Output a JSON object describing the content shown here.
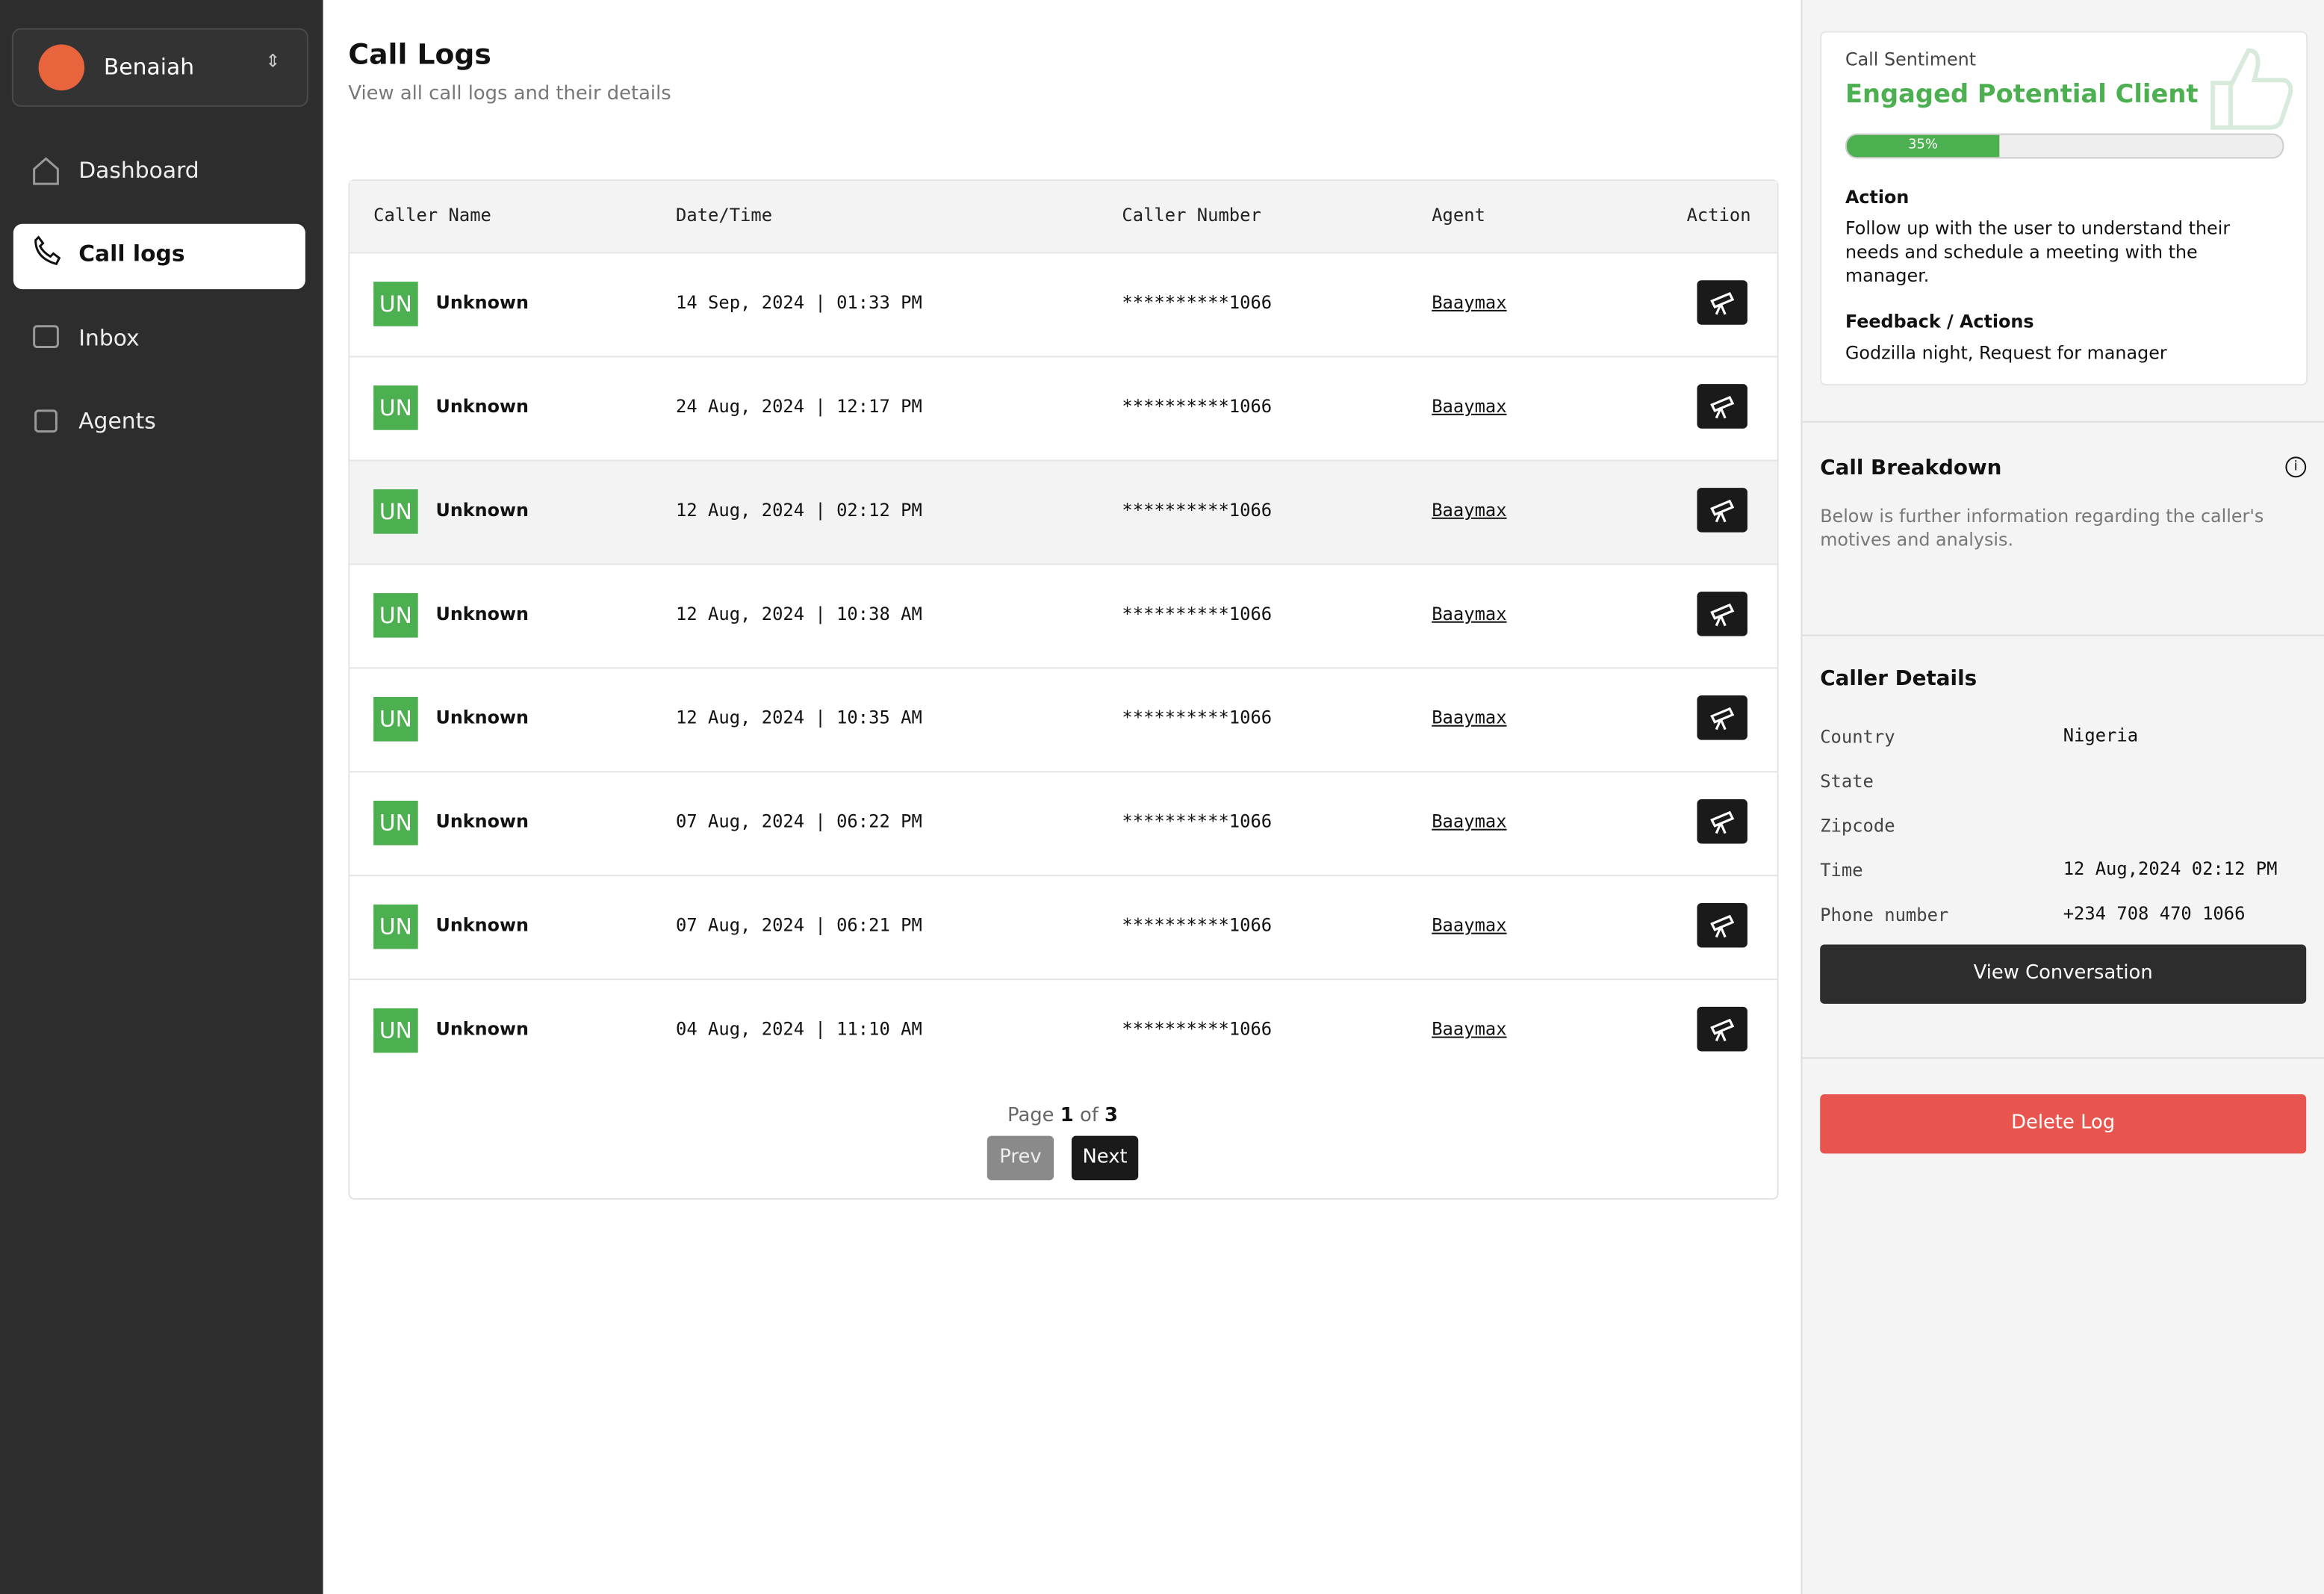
{
  "sidebar": {
    "user": "Benaiah",
    "nav": [
      "Dashboard",
      "Call logs",
      "Inbox",
      "Agents"
    ]
  },
  "header": {
    "title": "Call Logs",
    "subtitle": "View all call logs and their details"
  },
  "table": {
    "columns": [
      "Caller Name",
      "Date/Time",
      "Caller Number",
      "Agent",
      "Action"
    ],
    "rows": [
      [
        "UN",
        "Unknown",
        "14 Sep, 2024 | 01:33 PM",
        "**********1066",
        "Baaymax"
      ],
      [
        "UN",
        "Unknown",
        "24 Aug, 2024 | 12:17 PM",
        "**********1066",
        "Baaymax"
      ],
      [
        "UN",
        "Unknown",
        "12 Aug, 2024 | 02:12 PM",
        "**********1066",
        "Baaymax"
      ],
      [
        "UN",
        "Unknown",
        "12 Aug, 2024 | 10:38 AM",
        "**********1066",
        "Baaymax"
      ],
      [
        "UN",
        "Unknown",
        "12 Aug, 2024 | 10:35 AM",
        "**********1066",
        "Baaymax"
      ],
      [
        "UN",
        "Unknown",
        "07 Aug, 2024 | 06:22 PM",
        "**********1066",
        "Baaymax"
      ],
      [
        "UN",
        "Unknown",
        "07 Aug, 2024 | 06:21 PM",
        "**********1066",
        "Baaymax"
      ],
      [
        "UN",
        "Unknown",
        "04 Aug, 2024 | 11:10 AM",
        "**********1066",
        "Baaymax"
      ]
    ]
  },
  "pagination": {
    "page_word": "Page",
    "page": 1,
    "of_word": "of",
    "total": 3,
    "prev": "Prev",
    "next": "Next"
  },
  "sentiment": {
    "label": "Call Sentiment",
    "value": "Engaged Potential Client",
    "progress": {
      "value": 35,
      "label": "35%"
    },
    "action_title": "Action",
    "action_text": "Follow up with the user to understand their needs and schedule a meeting with the manager.",
    "feedback_title": "Feedback / Actions",
    "feedback_text": "Godzilla night, Request for manager"
  },
  "breakdown": {
    "title": "Call Breakdown",
    "text": "Below is further information regarding the caller's motives and analysis."
  },
  "caller_details": {
    "title": "Caller Details",
    "rows": [
      [
        "Country",
        "Nigeria"
      ],
      [
        "State",
        ""
      ],
      [
        "Zipcode",
        ""
      ],
      [
        "Time",
        "12 Aug,2024 02:12 PM"
      ],
      [
        "Phone number",
        "+234 708 470 1066"
      ]
    ]
  },
  "buttons": {
    "view": "View Conversation",
    "delete": "Delete Log"
  }
}
